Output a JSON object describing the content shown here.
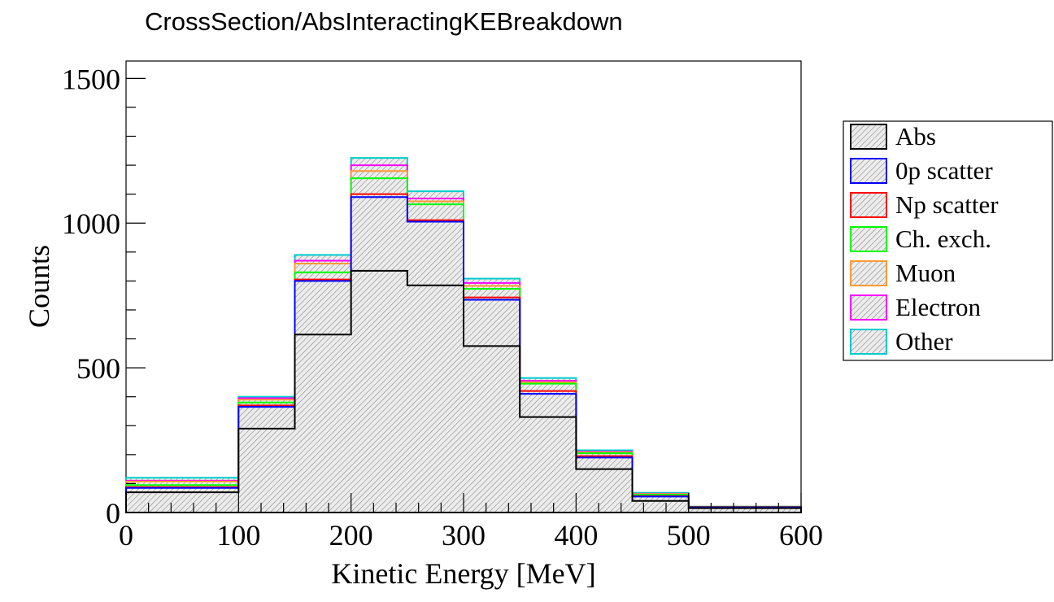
{
  "chart_data": {
    "type": "stacked-step-histogram",
    "title": "CrossSection/AbsInteractingKEBreakdown",
    "xlabel": "Kinetic Energy [MeV]",
    "ylabel": "Counts",
    "xlim": [
      0,
      600
    ],
    "ylim": [
      0,
      1560
    ],
    "x_ticks": [
      "0",
      "100",
      "200",
      "300",
      "400",
      "500",
      "600"
    ],
    "y_ticks": [
      "0",
      "500",
      "1000",
      "1500"
    ],
    "bin_edges": [
      0,
      100,
      150,
      200,
      250,
      300,
      350,
      400,
      450,
      500,
      600
    ],
    "legend_position": "right",
    "series": [
      {
        "name": "Abs",
        "color": "#000000",
        "values": [
          70,
          290,
          615,
          835,
          785,
          575,
          330,
          150,
          40,
          15
        ]
      },
      {
        "name": "0p scatter",
        "color": "#0000ff",
        "values": [
          15,
          75,
          185,
          255,
          220,
          160,
          80,
          40,
          15,
          3
        ]
      },
      {
        "name": "Np scatter",
        "color": "#ff0000",
        "values": [
          3,
          5,
          5,
          10,
          5,
          8,
          10,
          5,
          2,
          1
        ]
      },
      {
        "name": "Ch. exch.",
        "color": "#00ff00",
        "values": [
          7,
          10,
          25,
          55,
          55,
          30,
          25,
          10,
          5,
          1
        ]
      },
      {
        "name": "Muon",
        "color": "#ff9933",
        "values": [
          12,
          10,
          30,
          25,
          10,
          10,
          5,
          3,
          2,
          0
        ]
      },
      {
        "name": "Electron",
        "color": "#ff00ff",
        "values": [
          3,
          5,
          10,
          20,
          10,
          10,
          5,
          2,
          1,
          0
        ]
      },
      {
        "name": "Other",
        "color": "#00cccc",
        "values": [
          10,
          5,
          20,
          25,
          25,
          15,
          10,
          5,
          3,
          0
        ]
      }
    ]
  }
}
